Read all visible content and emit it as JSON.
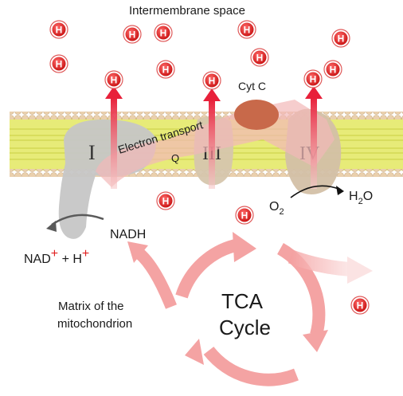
{
  "labels": {
    "intermembrane_space": "Intermembrane space",
    "cyt_c": "Cyt C",
    "electron_transport": "Electron transport",
    "q": "Q",
    "complex_1": "I",
    "complex_3": "III",
    "complex_4": "IV",
    "nadh": "NADH",
    "nad": "NAD",
    "plus_sign": "+",
    "plus_h": " + H",
    "o2_base": "O",
    "o2_sub": "2",
    "h2o_h": "H",
    "h2o_sub": "2",
    "h2o_o": "O",
    "matrix_line1": "Matrix of the",
    "matrix_line2": "mitochondrion",
    "tca_line1": "TCA",
    "tca_line2": "Cycle"
  },
  "proton_label": "H",
  "colors": {
    "proton_fill": "#e02020",
    "proton_ring": "#b01010",
    "arrow_red": "#e8203a",
    "cycle_arrow": "#f4a0a0",
    "membrane_yellow": "#e8ec7a",
    "lipid_head": "#e9c9a0",
    "complex_gray": "#c9c9c9",
    "complex_tan": "#d8c3a8",
    "cytc": "#c86a4c"
  }
}
